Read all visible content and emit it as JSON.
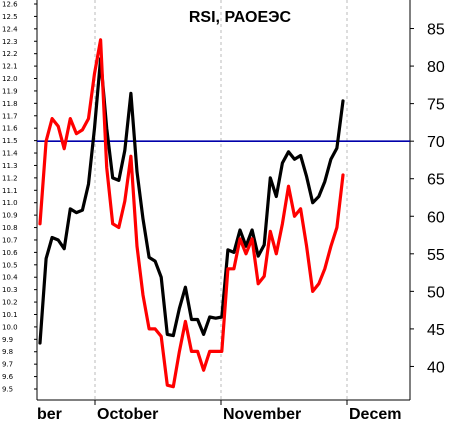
{
  "chart_data": {
    "type": "line",
    "title": "RSI, РАОЕЭС",
    "left_axis": {
      "min": 9.5,
      "max": 12.6,
      "ticks": [
        "9.5",
        "9.6",
        "9.7",
        "9.8",
        "9.9",
        "10.0",
        "10.1",
        "10.2",
        "10.3",
        "10.4",
        "10.5",
        "10.6",
        "10.7",
        "10.8",
        "10.9",
        "11.0",
        "11.1",
        "11.2",
        "11.3",
        "11.4",
        "11.5",
        "11.6",
        "11.7",
        "11.8",
        "11.9",
        "12.0",
        "12.1",
        "12.2",
        "12.3",
        "12.4",
        "12.5",
        "12.6"
      ]
    },
    "right_axis": {
      "min": 35,
      "max": 88,
      "ticks": [
        "40",
        "45",
        "50",
        "55",
        "60",
        "65",
        "70",
        "75",
        "80",
        "85"
      ]
    },
    "x_axis": {
      "labels": [
        "ber",
        "October",
        "November",
        "Decem"
      ]
    },
    "reference_line": {
      "value": 70,
      "axis": "right",
      "color": "#0000aa"
    },
    "series": [
      {
        "axis": "left",
        "color": "#000000",
        "values": [
          9.87,
          10.55,
          10.72,
          10.7,
          10.63,
          10.95,
          10.92,
          10.94,
          11.15,
          11.6,
          12.16,
          11.6,
          11.2,
          11.18,
          11.42,
          11.88,
          11.25,
          10.87,
          10.56,
          10.53,
          10.4,
          9.94,
          9.93,
          10.15,
          10.32,
          10.06,
          10.06,
          9.94,
          10.08,
          10.07,
          10.08,
          10.62,
          10.6,
          10.78,
          10.65,
          10.78,
          10.57,
          10.66,
          11.2,
          11.05,
          11.32,
          11.41,
          11.35,
          11.38,
          11.21,
          11.0,
          11.05,
          11.17,
          11.35,
          11.44,
          11.82
        ]
      },
      {
        "axis": "right",
        "color": "#ff0000",
        "values": [
          59,
          70,
          73,
          72,
          69,
          73,
          71,
          71.5,
          73,
          79,
          83.5,
          66.5,
          59,
          58.5,
          62,
          68,
          56,
          49.5,
          45,
          45,
          44,
          37.5,
          37.3,
          42,
          46,
          42,
          42,
          39.5,
          42,
          42,
          42,
          53,
          53,
          57,
          55,
          57,
          51,
          52,
          58,
          55,
          59,
          64,
          60,
          61,
          56,
          50,
          51,
          53,
          56,
          58.5,
          65.5
        ]
      }
    ]
  }
}
